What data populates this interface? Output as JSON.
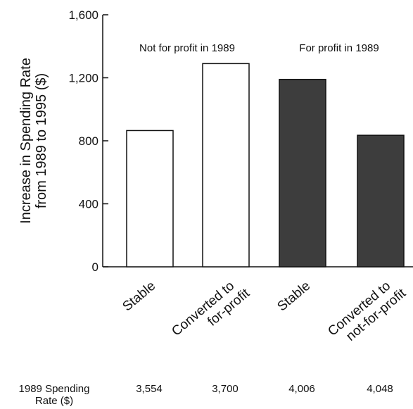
{
  "chart_data": {
    "type": "bar",
    "ylabel": [
      "Increase in Spending Rate",
      "from 1989 to 1995 ($)"
    ],
    "ylim": [
      0,
      1600
    ],
    "yticks": [
      0,
      400,
      800,
      1200,
      1600
    ],
    "ytick_labels": [
      "0",
      "400",
      "800",
      "1,200",
      "1,600"
    ],
    "grid": false,
    "groups": [
      {
        "label": "Not for profit in 1989"
      },
      {
        "label": "For profit in 1989"
      }
    ],
    "categories": [
      [
        "Stable"
      ],
      [
        "Converted to",
        "for-profit"
      ],
      [
        "Stable"
      ],
      [
        "Converted to",
        "not-for-profit"
      ]
    ],
    "values": [
      865,
      1290,
      1190,
      835
    ],
    "bar_colors": [
      "#ffffff",
      "#ffffff",
      "#3d3d3d",
      "#3d3d3d"
    ],
    "bar_group": [
      0,
      0,
      1,
      1
    ],
    "table": {
      "label": [
        "1989 Spending",
        "Rate ($)"
      ],
      "values": [
        "3,554",
        "3,700",
        "4,006",
        "4,048"
      ]
    }
  }
}
